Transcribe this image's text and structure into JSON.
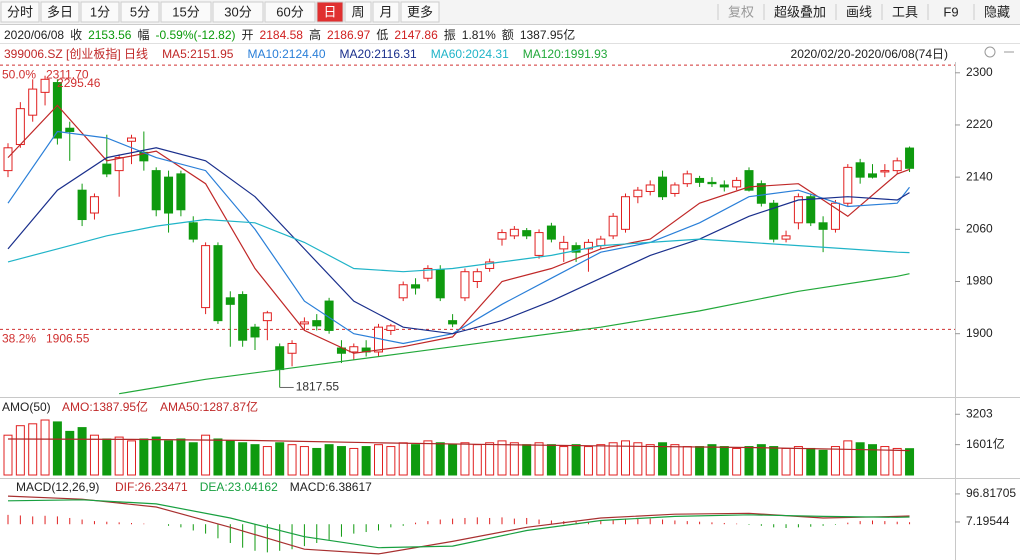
{
  "toolbar": {
    "tabs": [
      "分时",
      "多日",
      "1分",
      "5分",
      "15分",
      "30分",
      "60分",
      "日",
      "周",
      "月",
      "更多"
    ],
    "active_tab": 7,
    "tools": [
      "复权",
      "超级叠加",
      "画线",
      "工具",
      "F9",
      "隐藏"
    ]
  },
  "quote": {
    "date": "2020/06/08",
    "items": [
      {
        "label": "收",
        "value": "2153.56",
        "color": "#0a9a0a"
      },
      {
        "label": "幅",
        "value": "-0.59%(-12.82)",
        "color": "#0a9a0a"
      },
      {
        "label": "开",
        "value": "2184.58",
        "color": "#d02020"
      },
      {
        "label": "高",
        "value": "2186.97",
        "color": "#d02020"
      },
      {
        "label": "低",
        "value": "2147.86",
        "color": "#d02020"
      },
      {
        "label": "振",
        "value": "1.81%",
        "color": "#222222"
      },
      {
        "label": "额",
        "value": "1387.95亿",
        "color": "#222222"
      }
    ]
  },
  "chart_data": {
    "type": "candlestick",
    "symbol": "399006.SZ [创业板指] 日线",
    "range_label": "2020/02/20-2020/06/08(74日)",
    "up_color": "#e02020",
    "down_color": "#0f9a0f",
    "candles": {
      "open": [
        2150,
        2190,
        2235,
        2270,
        2285,
        2215,
        2120,
        2085,
        2160,
        2150,
        2195,
        2178,
        2150,
        2140,
        2145,
        2070,
        1940,
        2035,
        1955,
        1960,
        1910,
        1920,
        1880,
        1870,
        1915,
        1920,
        1950,
        1878,
        1872,
        1878,
        1872,
        1905,
        1955,
        1975,
        1985,
        1998,
        1920,
        1955,
        1980,
        2000,
        2045,
        2050,
        2058,
        2020,
        2065,
        2030,
        2035,
        2030,
        2035,
        2050,
        2060,
        2110,
        2118,
        2140,
        2115,
        2130,
        2138,
        2132,
        2128,
        2125,
        2150,
        2130,
        2100,
        2045,
        2070,
        2110,
        2070,
        2060,
        2100,
        2162,
        2145,
        2148,
        2150,
        2184.58
      ],
      "high": [
        2192,
        2255,
        2290,
        2295.46,
        2290,
        2225,
        2130,
        2115,
        2205,
        2175,
        2205,
        2210,
        2155,
        2150,
        2150,
        2080,
        2040,
        2040,
        1965,
        1965,
        1915,
        1935,
        1885,
        1890,
        1925,
        1930,
        1955,
        1890,
        1885,
        1890,
        1915,
        1915,
        1980,
        1985,
        2005,
        2005,
        1930,
        2000,
        2000,
        2015,
        2060,
        2065,
        2062,
        2060,
        2070,
        2050,
        2040,
        2045,
        2050,
        2085,
        2115,
        2125,
        2135,
        2150,
        2132,
        2150,
        2142,
        2140,
        2135,
        2140,
        2155,
        2135,
        2105,
        2058,
        2115,
        2115,
        2080,
        2105,
        2160,
        2168,
        2160,
        2160,
        2170,
        2186.97
      ],
      "low": [
        2140,
        2185,
        2225,
        2250,
        2190,
        2165,
        2065,
        2075,
        2140,
        2110,
        2160,
        2150,
        2080,
        2055,
        2080,
        2040,
        1930,
        1915,
        1880,
        1880,
        1875,
        1890,
        1817.55,
        1850,
        1905,
        1905,
        1900,
        1855,
        1860,
        1865,
        1865,
        1898,
        1950,
        1960,
        1980,
        1950,
        1910,
        1950,
        1970,
        1995,
        2035,
        2045,
        2045,
        2015,
        2040,
        2010,
        2010,
        1995,
        2030,
        2045,
        2055,
        2100,
        2112,
        2105,
        2110,
        2125,
        2125,
        2125,
        2118,
        2120,
        2118,
        2095,
        2040,
        2040,
        2060,
        2065,
        2025,
        2055,
        2095,
        2130,
        2138,
        2140,
        2145,
        2147.86
      ],
      "close": [
        2185,
        2245,
        2275,
        2290,
        2200,
        2210,
        2075,
        2110,
        2145,
        2170,
        2200,
        2165,
        2090,
        2085,
        2090,
        2045,
        2035,
        1920,
        1945,
        1890,
        1895,
        1932,
        1845,
        1885,
        1918,
        1912,
        1905,
        1870,
        1880,
        1872,
        1910,
        1912,
        1975,
        1970,
        2000,
        1955,
        1915,
        1995,
        1995,
        2010,
        2055,
        2060,
        2050,
        2055,
        2045,
        2040,
        2025,
        2040,
        2045,
        2080,
        2110,
        2120,
        2128,
        2110,
        2128,
        2145,
        2132,
        2130,
        2125,
        2135,
        2120,
        2100,
        2045,
        2050,
        2110,
        2070,
        2060,
        2100,
        2155,
        2140,
        2140,
        2150,
        2165,
        2153.56
      ]
    },
    "ylim": [
      1806,
      2315
    ],
    "yticks": [
      2300,
      2220,
      2140,
      2060,
      1980,
      1900
    ],
    "ma": [
      {
        "legend": "MA5:2151.95",
        "color": "#c02828",
        "x": [
          0,
          4,
          8,
          12,
          16,
          20,
          24,
          28,
          32,
          36,
          40,
          44,
          48,
          52,
          56,
          60,
          64,
          68,
          72,
          73
        ],
        "values": [
          2170,
          2250,
          2165,
          2180,
          2130,
          2000,
          1905,
          1870,
          1880,
          1895,
          1980,
          2000,
          2030,
          2045,
          2100,
          2125,
          2130,
          2080,
          2145,
          2151.95
        ]
      },
      {
        "legend": "MA10:2124.40",
        "color": "#2a7fd8",
        "x": [
          0,
          4,
          8,
          12,
          16,
          20,
          24,
          28,
          32,
          36,
          40,
          44,
          48,
          52,
          56,
          60,
          64,
          68,
          72,
          73
        ],
        "values": [
          2100,
          2210,
          2200,
          2170,
          2150,
          2060,
          1950,
          1900,
          1885,
          1900,
          1945,
          1985,
          2025,
          2040,
          2070,
          2110,
          2120,
          2095,
          2100,
          2124.4
        ]
      },
      {
        "legend": "MA20:2116.31",
        "color": "#1a2f8c",
        "x": [
          0,
          4,
          8,
          12,
          16,
          20,
          24,
          28,
          32,
          36,
          40,
          44,
          48,
          52,
          56,
          60,
          64,
          68,
          72,
          73
        ],
        "values": [
          2030,
          2120,
          2170,
          2185,
          2165,
          2110,
          2030,
          1950,
          1910,
          1900,
          1920,
          1950,
          1985,
          2020,
          2045,
          2080,
          2105,
          2110,
          2105,
          2116.31
        ]
      },
      {
        "legend": "MA60:2024.31",
        "color": "#20b4c8",
        "x": [
          0,
          4,
          8,
          12,
          16,
          20,
          24,
          28,
          32,
          36,
          40,
          44,
          48,
          52,
          56,
          60,
          64,
          68,
          72,
          73
        ],
        "values": [
          2010,
          2030,
          2050,
          2065,
          2075,
          2070,
          2040,
          2000,
          1995,
          2000,
          2010,
          2020,
          2035,
          2040,
          2045,
          2040,
          2035,
          2030,
          2025,
          2024.31
        ]
      },
      {
        "legend": "MA120:1991.93",
        "color": "#22a83a",
        "x": [
          9,
          16,
          24,
          32,
          40,
          48,
          56,
          64,
          72,
          73
        ],
        "values": [
          1808,
          1830,
          1850,
          1870,
          1890,
          1910,
          1935,
          1965,
          1988,
          1991.93
        ]
      }
    ],
    "fib_lines": [
      {
        "label": "50.0%",
        "value": 2311.7,
        "value_label": "2311.70"
      },
      {
        "label": "38.2%",
        "value": 1906.55
      }
    ],
    "high_mark": {
      "index": 3,
      "value": 2295.46
    },
    "low_mark": {
      "index": 22,
      "value": 1817.55
    },
    "volume": {
      "title": "AMO(50)",
      "legend": [
        "AMO:1387.95亿",
        "AMA50:1287.87亿"
      ],
      "ylim": [
        0,
        3850
      ],
      "yticks": [
        3203,
        {
          "value": 1601,
          "label": "1601亿"
        }
      ],
      "values": [
        2100,
        2600,
        2700,
        2900,
        2800,
        2300,
        2500,
        2100,
        1900,
        2000,
        1800,
        1900,
        2000,
        1800,
        1900,
        1700,
        2100,
        1900,
        1800,
        1700,
        1600,
        1500,
        1700,
        1600,
        1500,
        1400,
        1600,
        1500,
        1400,
        1500,
        1600,
        1500,
        1700,
        1600,
        1800,
        1700,
        1600,
        1700,
        1600,
        1700,
        1800,
        1700,
        1600,
        1700,
        1600,
        1500,
        1600,
        1500,
        1600,
        1700,
        1800,
        1700,
        1600,
        1700,
        1600,
        1500,
        1500,
        1600,
        1500,
        1400,
        1500,
        1600,
        1500,
        1400,
        1500,
        1400,
        1300,
        1500,
        1800,
        1700,
        1600,
        1500,
        1400,
        1387.95
      ],
      "ama": {
        "color": "#b02828",
        "x": [
          0,
          10,
          20,
          30,
          40,
          50,
          60,
          70,
          73
        ],
        "values": [
          1900,
          1880,
          1820,
          1700,
          1600,
          1520,
          1450,
          1330,
          1287.87
        ]
      }
    },
    "macd": {
      "title": "MACD(12,26,9)",
      "legend": [
        {
          "text": "DIF:26.23471",
          "color": "#c02828"
        },
        {
          "text": "DEA:23.04162",
          "color": "#18a040"
        },
        {
          "text": "MACD:6.38617",
          "color": "#222222"
        }
      ],
      "ylim": [
        -108,
        135
      ],
      "yticks": [
        96.81705,
        7.19544
      ],
      "hist": [
        30,
        28,
        25,
        27,
        25,
        20,
        15,
        10,
        8,
        6,
        4,
        2,
        0,
        -5,
        -10,
        -20,
        -30,
        -45,
        -60,
        -75,
        -85,
        -90,
        -85,
        -80,
        -70,
        -60,
        -50,
        -40,
        -30,
        -25,
        -20,
        -10,
        -5,
        5,
        10,
        15,
        18,
        20,
        22,
        20,
        22,
        18,
        20,
        15,
        12,
        10,
        8,
        6,
        10,
        15,
        18,
        20,
        18,
        15,
        12,
        10,
        8,
        6,
        4,
        2,
        -2,
        -5,
        -10,
        -12,
        -10,
        -8,
        -5,
        -2,
        5,
        10,
        12,
        10,
        8,
        6.38617
      ],
      "lines": [
        {
          "color": "#a83030",
          "x": [
            0,
            6,
            12,
            18,
            24,
            30,
            36,
            42,
            48,
            54,
            60,
            66,
            72,
            73
          ],
          "values": [
            90,
            80,
            55,
            -10,
            -80,
            -95,
            -55,
            -10,
            20,
            32,
            35,
            20,
            25,
            26.23471
          ]
        },
        {
          "color": "#18a040",
          "x": [
            0,
            6,
            12,
            18,
            24,
            30,
            36,
            42,
            48,
            54,
            60,
            66,
            72,
            73
          ],
          "values": [
            75,
            78,
            65,
            20,
            -40,
            -75,
            -70,
            -20,
            12,
            25,
            30,
            25,
            22,
            23.04162
          ]
        }
      ]
    }
  }
}
